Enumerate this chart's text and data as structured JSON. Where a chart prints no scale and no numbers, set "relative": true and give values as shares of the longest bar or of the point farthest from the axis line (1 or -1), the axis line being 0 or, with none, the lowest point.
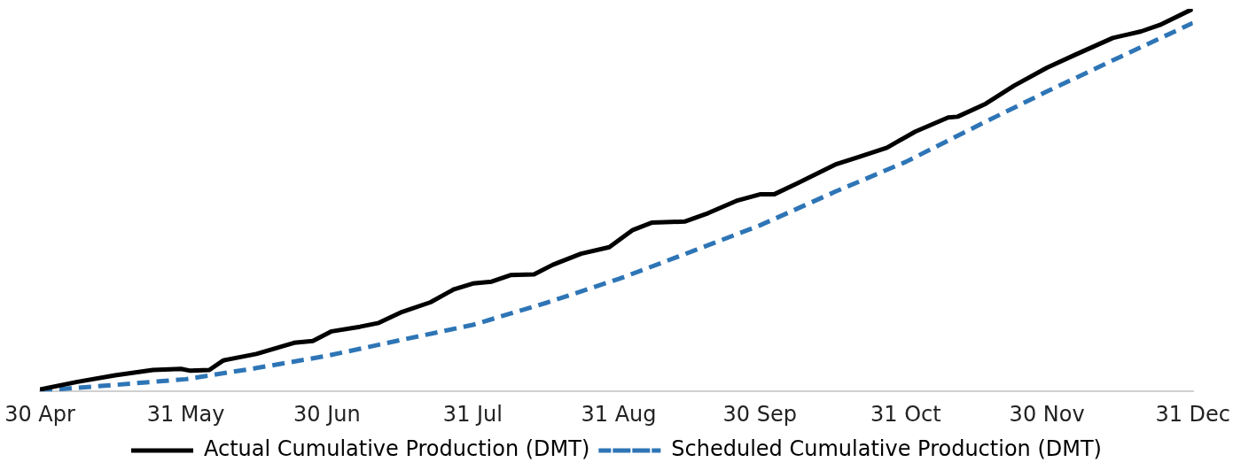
{
  "chart_data": {
    "type": "line",
    "relative": true,
    "legend": "bottom",
    "grid": false,
    "marker": "none",
    "xlim": [
      "--04-30",
      "--12-31"
    ],
    "xticks": [
      {
        "value": "--04-30",
        "label": "30 Apr"
      },
      {
        "value": "--05-31",
        "label": "31 May"
      },
      {
        "value": "--06-30",
        "label": "30 Jun"
      },
      {
        "value": "--07-31",
        "label": "31 Jul"
      },
      {
        "value": "--08-31",
        "label": "31 Aug"
      },
      {
        "value": "--09-30",
        "label": "30 Sep"
      },
      {
        "value": "--10-31",
        "label": "31 Oct"
      },
      {
        "value": "--11-30",
        "label": "30 Nov"
      },
      {
        "value": "--12-31",
        "label": "31 Dec"
      }
    ],
    "series": [
      {
        "name": "Actual Cumulative Production (DMT)",
        "color": "#000000",
        "line_style": "solid",
        "x": [
          "--04-30",
          "--05-08",
          "--05-16",
          "--05-24",
          "--05-30",
          "--06-01",
          "--06-05",
          "--06-08",
          "--06-15",
          "--06-23",
          "--06-27",
          "--07-01",
          "--07-07",
          "--07-11",
          "--07-16",
          "--07-22",
          "--07-27",
          "--07-31",
          "--08-04",
          "--08-08",
          "--08-13",
          "--08-17",
          "--08-23",
          "--08-29",
          "--09-03",
          "--09-07",
          "--09-14",
          "--09-19",
          "--09-25",
          "--09-30",
          "--10-03",
          "--10-08",
          "--10-16",
          "--10-21",
          "--10-27",
          "--11-02",
          "--11-09",
          "--11-11",
          "--11-17",
          "--11-23",
          "--11-30",
          "--12-06",
          "--12-14",
          "--12-20",
          "--12-24",
          "--12-31"
        ],
        "values": [
          0.005,
          0.025,
          0.042,
          0.056,
          0.059,
          0.054,
          0.056,
          0.081,
          0.098,
          0.127,
          0.132,
          0.157,
          0.169,
          0.179,
          0.208,
          0.233,
          0.267,
          0.282,
          0.287,
          0.304,
          0.306,
          0.331,
          0.36,
          0.377,
          0.422,
          0.441,
          0.444,
          0.466,
          0.498,
          0.515,
          0.515,
          0.544,
          0.593,
          0.613,
          0.637,
          0.679,
          0.716,
          0.718,
          0.752,
          0.799,
          0.846,
          0.88,
          0.924,
          0.941,
          0.958,
          1
        ]
      },
      {
        "name": "Scheduled Cumulative Production (DMT)",
        "color": "#2e75b6",
        "line_style": "dashed",
        "x": [
          "--04-30",
          "--05-16",
          "--05-31",
          "--06-15",
          "--06-30",
          "--07-16",
          "--07-31",
          "--08-16",
          "--08-31",
          "--09-16",
          "--09-30",
          "--10-16",
          "--10-31",
          "--11-16",
          "--11-30",
          "--12-16",
          "--12-31"
        ],
        "values": [
          0.002,
          0.017,
          0.032,
          0.061,
          0.093,
          0.135,
          0.174,
          0.233,
          0.294,
          0.368,
          0.434,
          0.522,
          0.6,
          0.699,
          0.784,
          0.877,
          0.963
        ]
      }
    ]
  }
}
